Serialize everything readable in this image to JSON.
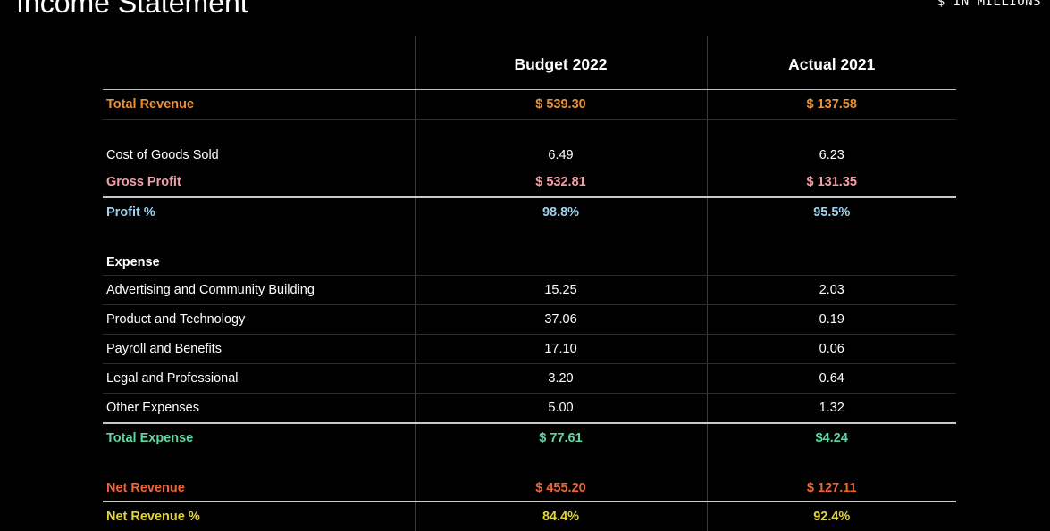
{
  "header": {
    "title": "Income Statement",
    "units": "$ IN MILLIONS"
  },
  "table": {
    "columns": [
      "",
      "Budget 2022",
      "Actual 2021"
    ],
    "rows": [
      {
        "label": "Total Revenue",
        "budget": "$ 539.30",
        "actual": "$ 137.58",
        "color": "#e8913a"
      },
      {
        "label": "Cost of Goods Sold",
        "budget": "6.49",
        "actual": "6.23",
        "color": "#ffffff"
      },
      {
        "label": "Gross Profit",
        "budget": "$ 532.81",
        "actual": "$ 131.35",
        "color": "#f0a0a8"
      },
      {
        "label": "Profit %",
        "budget": "98.8%",
        "actual": "95.5%",
        "color": "#9fd3f0"
      },
      {
        "label": "Expense",
        "budget": "",
        "actual": "",
        "color": "#ffffff"
      },
      {
        "label": "Advertising and Community Building",
        "budget": "15.25",
        "actual": "2.03",
        "color": "#ffffff"
      },
      {
        "label": "Product and Technology",
        "budget": "37.06",
        "actual": "0.19",
        "color": "#ffffff"
      },
      {
        "label": "Payroll and Benefits",
        "budget": "17.10",
        "actual": "0.06",
        "color": "#ffffff"
      },
      {
        "label": "Legal and Professional",
        "budget": "3.20",
        "actual": "0.64",
        "color": "#ffffff"
      },
      {
        "label": "Other Expenses",
        "budget": "5.00",
        "actual": "1.32",
        "color": "#ffffff"
      },
      {
        "label": "Total Expense",
        "budget": "$ 77.61",
        "actual": "$4.24",
        "color": "#5fd6a4"
      },
      {
        "label": "Net Revenue",
        "budget": "$ 455.20",
        "actual": "$ 127.11",
        "color": "#f0643a"
      },
      {
        "label": "Net Revenue %",
        "budget": "84.4%",
        "actual": "92.4%",
        "color": "#e2d23c"
      }
    ]
  }
}
